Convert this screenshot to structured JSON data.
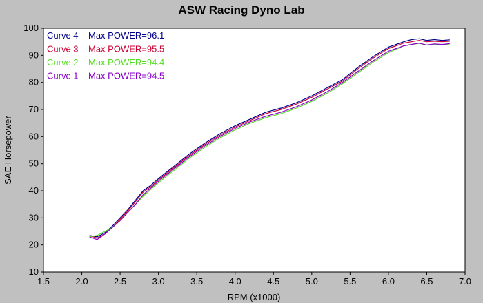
{
  "chart_data": {
    "type": "line",
    "title": "ASW Racing Dyno Lab",
    "xlabel": "RPM (x1000)",
    "ylabel": "SAE Horsepower",
    "xlim": [
      1.5,
      7.0
    ],
    "ylim": [
      10,
      100
    ],
    "x_ticks": [
      "1.5",
      "2.0",
      "2.5",
      "3.0",
      "3.5",
      "4.0",
      "4.5",
      "5.0",
      "5.5",
      "6.0",
      "6.5",
      "7.0"
    ],
    "y_ticks": [
      "10",
      "20",
      "30",
      "40",
      "50",
      "60",
      "70",
      "80",
      "90",
      "100"
    ],
    "grid": false,
    "legend_position": "top-left",
    "series": [
      {
        "name": "Curve 4",
        "legend_label": "Curve 4",
        "max_label": "Max POWER=96.1",
        "color": "#00008b",
        "x": [
          2.1,
          2.2,
          2.3,
          2.4,
          2.5,
          2.6,
          2.7,
          2.8,
          2.9,
          3.0,
          3.2,
          3.4,
          3.6,
          3.8,
          4.0,
          4.2,
          4.4,
          4.6,
          4.8,
          5.0,
          5.2,
          5.4,
          5.6,
          5.8,
          6.0,
          6.2,
          6.3,
          6.4,
          6.5,
          6.6,
          6.7,
          6.8
        ],
        "y": [
          23.5,
          23.0,
          24.5,
          27.0,
          30.0,
          33.0,
          36.5,
          40.0,
          42.0,
          44.5,
          49.0,
          53.5,
          57.5,
          61.0,
          64.0,
          66.5,
          69.0,
          70.5,
          72.5,
          75.0,
          78.0,
          81.0,
          85.5,
          89.5,
          93.0,
          95.0,
          95.8,
          96.1,
          95.5,
          95.8,
          95.5,
          95.7
        ]
      },
      {
        "name": "Curve 3",
        "legend_label": "Curve 3",
        "max_label": "Max POWER=95.5",
        "color": "#cc0033",
        "x": [
          2.1,
          2.2,
          2.3,
          2.4,
          2.5,
          2.6,
          2.7,
          2.8,
          2.9,
          3.0,
          3.2,
          3.4,
          3.6,
          3.8,
          4.0,
          4.2,
          4.4,
          4.6,
          4.8,
          5.0,
          5.2,
          5.4,
          5.6,
          5.8,
          6.0,
          6.2,
          6.3,
          6.4,
          6.5,
          6.6,
          6.7,
          6.8
        ],
        "y": [
          23.5,
          22.5,
          24.0,
          26.5,
          29.5,
          32.5,
          36.0,
          39.5,
          41.5,
          44.0,
          48.5,
          53.0,
          57.0,
          60.5,
          63.5,
          66.0,
          68.5,
          70.0,
          72.0,
          74.5,
          77.5,
          80.5,
          85.0,
          89.0,
          92.5,
          94.5,
          95.0,
          95.5,
          95.0,
          95.2,
          95.0,
          95.2
        ]
      },
      {
        "name": "Curve 2",
        "legend_label": "Curve 2",
        "max_label": "Max POWER=94.4",
        "color": "#55dd22",
        "x": [
          2.1,
          2.2,
          2.3,
          2.4,
          2.5,
          2.6,
          2.7,
          2.8,
          2.9,
          3.0,
          3.2,
          3.4,
          3.6,
          3.8,
          4.0,
          4.2,
          4.4,
          4.6,
          4.8,
          5.0,
          5.2,
          5.4,
          5.6,
          5.8,
          6.0,
          6.2,
          6.3,
          6.4,
          6.5,
          6.6,
          6.7,
          6.8
        ],
        "y": [
          23.0,
          23.5,
          25.0,
          26.5,
          29.0,
          32.0,
          35.0,
          38.0,
          40.5,
          43.0,
          47.5,
          52.0,
          56.0,
          59.5,
          62.5,
          65.0,
          67.0,
          68.5,
          70.5,
          73.0,
          76.0,
          79.5,
          83.5,
          87.5,
          91.0,
          93.5,
          94.0,
          94.4,
          93.8,
          94.0,
          93.8,
          94.2
        ]
      },
      {
        "name": "Curve 1",
        "legend_label": "Curve 1",
        "max_label": "Max POWER=94.5",
        "color": "#8800cc",
        "x": [
          2.1,
          2.2,
          2.3,
          2.4,
          2.5,
          2.6,
          2.7,
          2.8,
          2.9,
          3.0,
          3.2,
          3.4,
          3.6,
          3.8,
          4.0,
          4.2,
          4.4,
          4.6,
          4.8,
          5.0,
          5.2,
          5.4,
          5.6,
          5.8,
          6.0,
          6.2,
          6.3,
          6.4,
          6.5,
          6.6,
          6.7,
          6.8
        ],
        "y": [
          23.0,
          22.0,
          24.0,
          26.5,
          29.0,
          32.0,
          35.0,
          38.5,
          41.0,
          43.5,
          48.0,
          52.5,
          56.5,
          60.0,
          63.0,
          65.5,
          67.5,
          69.0,
          71.0,
          73.5,
          76.5,
          80.0,
          84.0,
          88.0,
          91.5,
          93.5,
          94.0,
          94.5,
          93.8,
          94.2,
          94.0,
          94.3
        ]
      }
    ]
  }
}
